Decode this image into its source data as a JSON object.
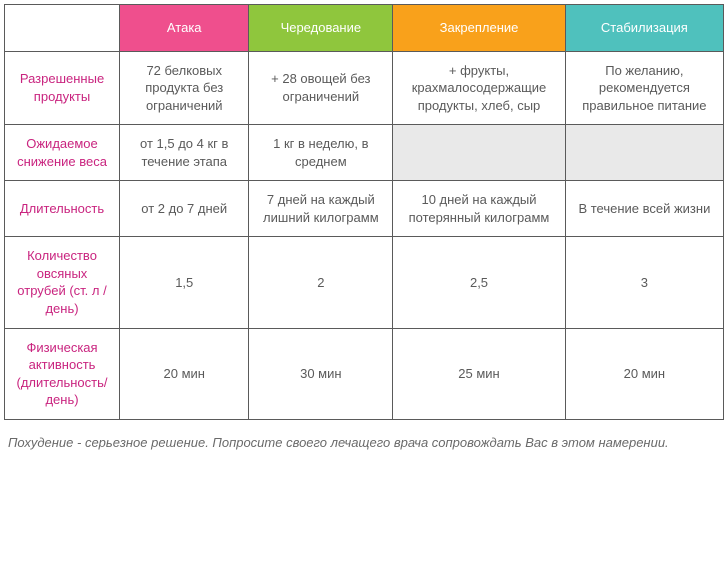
{
  "colors": {
    "row_label": "#c9247f",
    "body_text": "#5a5a5a",
    "border": "#5a5a5a",
    "shaded_cell": "#e9e9e9",
    "header_bg": [
      "#ef4f8d",
      "#8fc63d",
      "#f9a11b",
      "#4fc1bd"
    ],
    "header_text": "#ffffff"
  },
  "table": {
    "col_widths": [
      "16%",
      "18%",
      "20%",
      "24%",
      "22%"
    ],
    "headers": [
      "Атака",
      "Чередование",
      "Закрепление",
      "Стабилизация"
    ],
    "rows": [
      {
        "label": "Разрешенные продукты",
        "cells": [
          "72 белковых продукта без ограничений",
          "+ 28 овощей без ограничений",
          "+ фрукты, крахмалосодержащие продукты, хлеб, сыр",
          "По желанию, рекомендуется правильное питание"
        ],
        "shaded": [
          false,
          false,
          false,
          false
        ]
      },
      {
        "label": "Ожидаемое снижение веса",
        "cells": [
          "от 1,5 до 4 кг в течение этапа",
          "1 кг в неделю, в среднем",
          "",
          ""
        ],
        "shaded": [
          false,
          false,
          true,
          true
        ]
      },
      {
        "label": "Длительность",
        "cells": [
          "от 2 до 7 дней",
          "7 дней на каждый лишний килограмм",
          "10 дней на каждый потерянный килограмм",
          "В течение всей жизни"
        ],
        "shaded": [
          false,
          false,
          false,
          false
        ]
      },
      {
        "label": "Количество овсяных отрубей (ст. л /день)",
        "cells": [
          "1,5",
          "2",
          "2,5",
          "3"
        ],
        "shaded": [
          false,
          false,
          false,
          false
        ]
      },
      {
        "label": "Физическая активность (длительность/ день)",
        "cells": [
          "20 мин",
          "30 мин",
          "25 мин",
          "20 мин"
        ],
        "shaded": [
          false,
          false,
          false,
          false
        ]
      }
    ]
  },
  "footnote": "Похудение - серьезное решение. Попросите своего лечащего врача сопровождать Вас в этом намерении."
}
